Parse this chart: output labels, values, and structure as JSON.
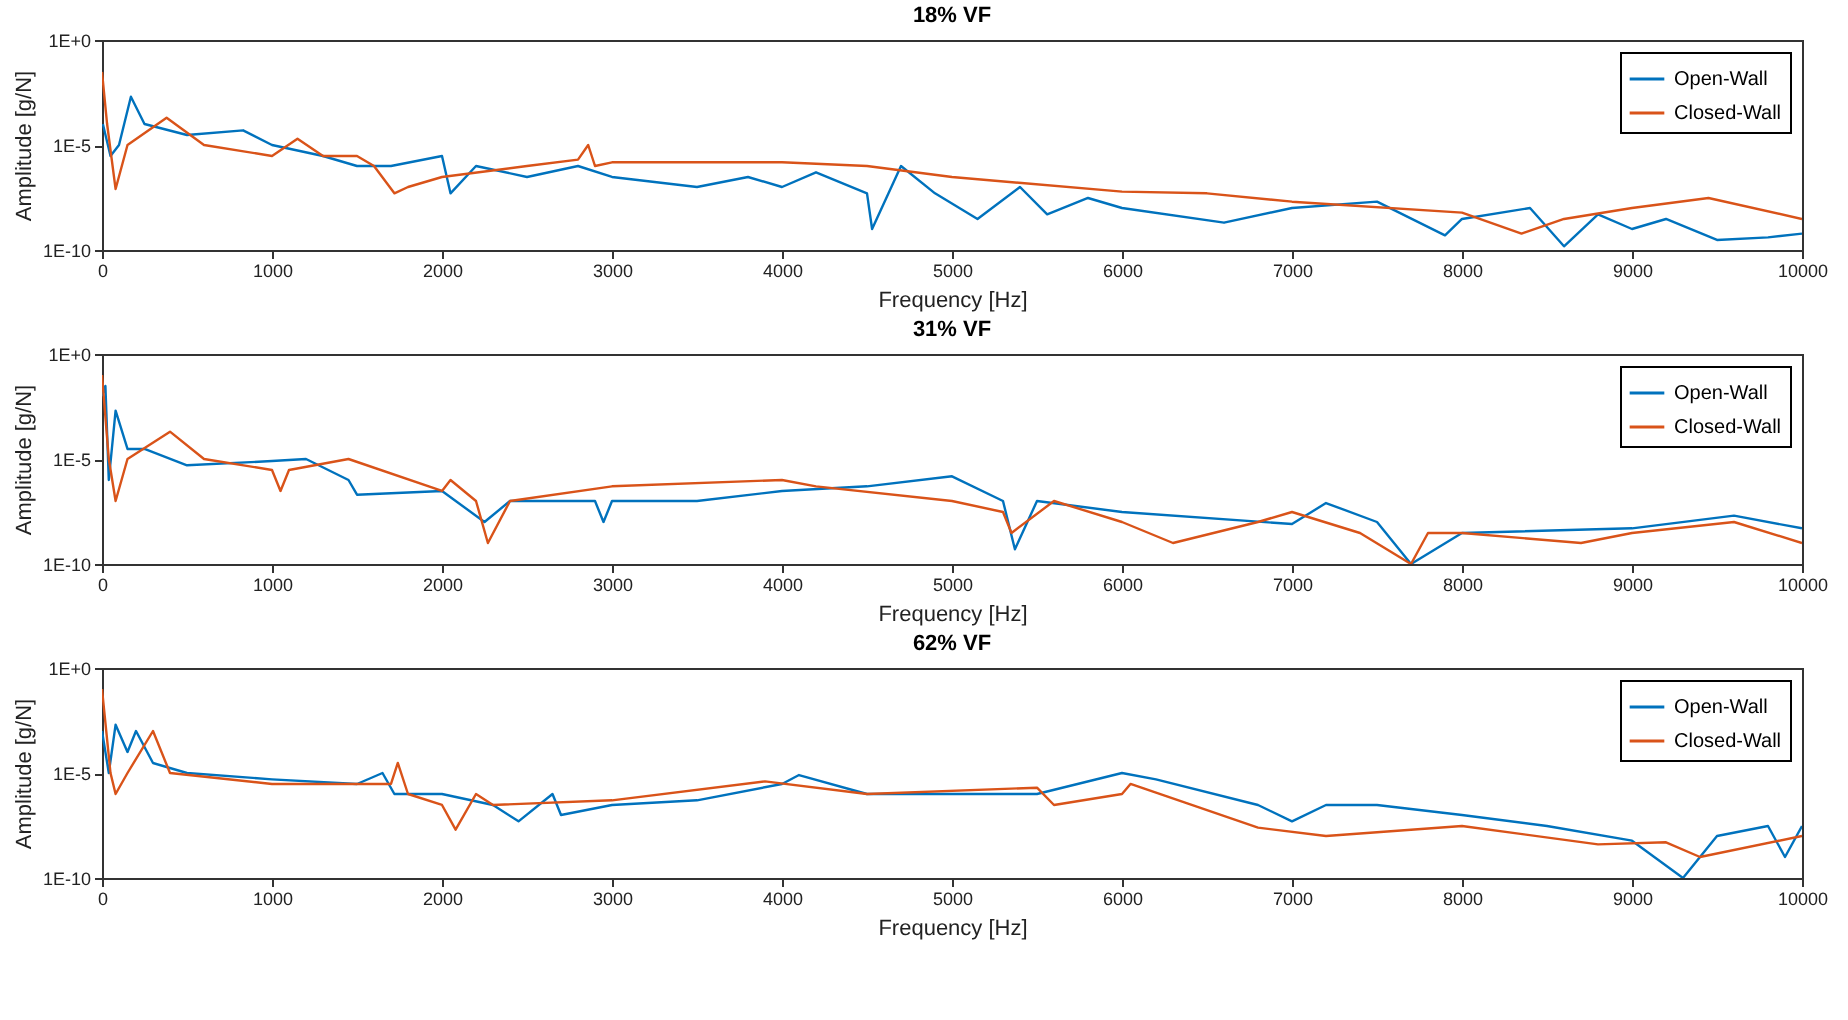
{
  "chart_data": [
    {
      "type": "line",
      "title": "18% VF",
      "xlabel": "Frequency [Hz]",
      "ylabel": "Amplitude [g/N]",
      "log": "y",
      "legend": "top right",
      "xlim": [
        0,
        10000
      ],
      "xticks": [
        0,
        1000,
        2000,
        3000,
        4000,
        5000,
        6000,
        7000,
        8000,
        9000,
        10000
      ],
      "ylim": [
        1e-10,
        1
      ],
      "yticks": [
        {
          "value": 1,
          "label": "1E+0"
        },
        {
          "value": 1e-05,
          "label": "1E-5"
        },
        {
          "value": 1e-10,
          "label": "1E-10"
        }
      ],
      "series": [
        {
          "name": "Open-Wall",
          "color": "#0072bd",
          "x": [
            5,
            50,
            100,
            170,
            250,
            500,
            830,
            1000,
            1300,
            1500,
            1700,
            2000,
            2050,
            2200,
            2500,
            2800,
            3000,
            3500,
            3800,
            4000,
            4200,
            4500,
            4530,
            4700,
            4900,
            5150,
            5400,
            5560,
            5800,
            6000,
            6600,
            7000,
            7500,
            7900,
            8000,
            8400,
            8600,
            8800,
            9000,
            9200,
            9500,
            9800,
            10000
          ],
          "values": [
            0.0001,
            3e-06,
            1e-05,
            0.002,
            0.0001,
            3e-05,
            5e-05,
            1e-05,
            3e-06,
            1e-06,
            1e-06,
            3e-06,
            5e-08,
            1e-06,
            3e-07,
            1e-06,
            3e-07,
            1e-07,
            3e-07,
            1e-07,
            5e-07,
            5e-08,
            1e-09,
            1e-06,
            5e-08,
            3e-09,
            1e-07,
            5e-09,
            3e-08,
            1e-08,
            2e-09,
            1e-08,
            2e-08,
            5e-10,
            3e-09,
            1e-08,
            1.5e-10,
            5e-09,
            1e-09,
            3e-09,
            3e-10,
            4e-10,
            6e-10
          ]
        },
        {
          "name": "Closed-Wall",
          "color": "#d95319",
          "x": [
            0,
            30,
            80,
            150,
            380,
            600,
            1000,
            1150,
            1300,
            1500,
            1600,
            1720,
            1800,
            2000,
            2500,
            2800,
            2860,
            2900,
            3000,
            4000,
            4500,
            5000,
            6000,
            6500,
            7000,
            8000,
            8350,
            8600,
            9000,
            9450,
            10000
          ],
          "values": [
            0.03,
            0.0001,
            8e-08,
            1e-05,
            0.0002,
            1e-05,
            3e-06,
            2e-05,
            3e-06,
            3e-06,
            1e-06,
            5e-08,
            1e-07,
            3e-07,
            1e-06,
            2e-06,
            1e-05,
            1e-06,
            1.5e-06,
            1.5e-06,
            1e-06,
            3e-07,
            6e-08,
            5e-08,
            2e-08,
            6e-09,
            6e-10,
            3e-09,
            1e-08,
            3e-08,
            3e-09
          ]
        }
      ]
    },
    {
      "type": "line",
      "title": "31% VF",
      "xlabel": "Frequency [Hz]",
      "ylabel": "Amplitude [g/N]",
      "log": "y",
      "legend": "top right",
      "xlim": [
        0,
        10000
      ],
      "xticks": [
        0,
        1000,
        2000,
        3000,
        4000,
        5000,
        6000,
        7000,
        8000,
        9000,
        10000
      ],
      "ylim": [
        1e-10,
        1
      ],
      "yticks": [
        {
          "value": 1,
          "label": "1E+0"
        },
        {
          "value": 1e-05,
          "label": "1E-5"
        },
        {
          "value": 1e-10,
          "label": "1E-10"
        }
      ],
      "series": [
        {
          "name": "Open-Wall",
          "color": "#0072bd",
          "x": [
            0,
            20,
            40,
            80,
            150,
            250,
            500,
            1000,
            1200,
            1450,
            1500,
            2000,
            2250,
            2400,
            2900,
            2950,
            3000,
            3500,
            4000,
            4500,
            5000,
            5300,
            5370,
            5500,
            6000,
            7000,
            7200,
            7500,
            7700,
            8000,
            9000,
            9600,
            10000
          ],
          "values": [
            0.01,
            0.03,
            1e-06,
            0.002,
            3e-05,
            3e-05,
            5e-06,
            8e-06,
            1e-05,
            1e-06,
            2e-07,
            3e-07,
            1e-08,
            1e-07,
            1e-07,
            1e-08,
            1e-07,
            1e-07,
            3e-07,
            5e-07,
            1.5e-06,
            1e-07,
            5e-10,
            1e-07,
            3e-08,
            8e-09,
            8e-08,
            1e-08,
            1e-10,
            3e-09,
            5e-09,
            2e-08,
            5e-09
          ]
        },
        {
          "name": "Closed-Wall",
          "color": "#d95319",
          "x": [
            0,
            40,
            80,
            150,
            400,
            600,
            1000,
            1050,
            1100,
            1450,
            2000,
            2050,
            2200,
            2270,
            2400,
            3000,
            4000,
            4200,
            5000,
            5300,
            5350,
            5600,
            6000,
            6300,
            6800,
            7000,
            7400,
            7700,
            7800,
            8000,
            8700,
            9000,
            9600,
            10000
          ],
          "values": [
            0.1,
            1e-05,
            1e-07,
            1e-05,
            0.0002,
            1e-05,
            3e-06,
            3e-07,
            3e-06,
            1e-05,
            3e-07,
            1e-06,
            1e-07,
            1e-09,
            1e-07,
            5e-07,
            1e-06,
            5e-07,
            1e-07,
            3e-08,
            3e-09,
            1e-07,
            1e-08,
            1e-09,
            1e-08,
            3e-08,
            3e-09,
            1e-10,
            3e-09,
            3e-09,
            1e-09,
            3e-09,
            1e-08,
            1e-09
          ]
        }
      ]
    },
    {
      "type": "line",
      "title": "62% VF",
      "xlabel": "Frequency [Hz]",
      "ylabel": "Amplitude [g/N]",
      "log": "y",
      "legend": "top right",
      "xlim": [
        0,
        10000
      ],
      "xticks": [
        0,
        1000,
        2000,
        3000,
        4000,
        5000,
        6000,
        7000,
        8000,
        9000,
        10000
      ],
      "ylim": [
        1e-10,
        1
      ],
      "yticks": [
        {
          "value": 1,
          "label": "1E+0"
        },
        {
          "value": 1e-05,
          "label": "1E-5"
        },
        {
          "value": 1e-10,
          "label": "1E-10"
        }
      ],
      "series": [
        {
          "name": "Open-Wall",
          "color": "#0072bd",
          "x": [
            0,
            40,
            80,
            150,
            200,
            300,
            500,
            1000,
            1500,
            1650,
            1720,
            2000,
            2300,
            2450,
            2650,
            2700,
            3000,
            3500,
            4000,
            4100,
            4500,
            5000,
            5500,
            6000,
            6200,
            6800,
            7000,
            7200,
            7500,
            8000,
            8500,
            9000,
            9300,
            9500,
            9800,
            9900,
            10000
          ],
          "values": [
            0.001,
            1e-05,
            0.002,
            0.0001,
            0.001,
            3e-05,
            1e-05,
            5e-06,
            3e-06,
            1e-05,
            1e-06,
            1e-06,
            3e-07,
            5e-08,
            1e-06,
            1e-07,
            3e-07,
            5e-07,
            3e-06,
            8e-06,
            1e-06,
            1e-06,
            1e-06,
            1e-05,
            5e-06,
            3e-07,
            5e-08,
            3e-07,
            3e-07,
            1e-07,
            3e-08,
            6e-09,
            1e-10,
            1e-08,
            3e-08,
            1e-09,
            3e-08
          ]
        },
        {
          "name": "Closed-Wall",
          "color": "#d95319",
          "x": [
            0,
            50,
            80,
            150,
            300,
            400,
            1000,
            1700,
            1740,
            1800,
            2000,
            2080,
            2200,
            2300,
            3000,
            3900,
            4500,
            5500,
            5600,
            6000,
            6050,
            6800,
            7200,
            8000,
            8800,
            9200,
            9400,
            10000
          ],
          "values": [
            0.1,
            1e-05,
            1e-06,
            1e-05,
            0.001,
            1e-05,
            3e-06,
            3e-06,
            3e-05,
            1e-06,
            3e-07,
            2e-08,
            1e-06,
            3e-07,
            5e-07,
            4e-06,
            1e-06,
            2e-06,
            3e-07,
            1e-06,
            3e-06,
            2.5e-08,
            1e-08,
            3e-08,
            4e-09,
            5e-09,
            1e-09,
            1e-08
          ]
        }
      ]
    }
  ]
}
